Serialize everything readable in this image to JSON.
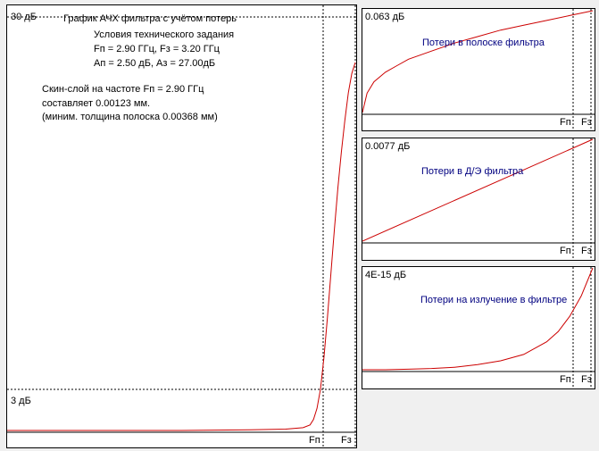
{
  "main_panel": {
    "max_label": "30 дБ",
    "title": "График АЧХ фильтра с учётом потерь",
    "conditions_title": "Условия технического задания",
    "conditions_line1": "Fп = 2.90 ГГц, Fз = 3.20 ГГц",
    "conditions_line2": "Ап = 2.50 дБ, Аз = 27.00дБ",
    "skin_line1": "Скин-слой на частоте Fп = 2.90  ГГц",
    "skin_line2": "составляет 0.00123 мм.",
    "skin_line3": "(миним. толщина полоска 0.00368 мм)",
    "ref_label": "3 дБ",
    "fp_label": "Fп",
    "fz_label": "Fз"
  },
  "sub_panels": [
    {
      "value_label": "0.063 дБ",
      "title": "Потери в полоске фильтра",
      "fp_label": "Fп",
      "fz_label": "Fз"
    },
    {
      "value_label": "0.0077 дБ",
      "title": "Потери в Д/Э фильтра",
      "fp_label": "Fп",
      "fz_label": "Fз"
    },
    {
      "value_label": "4E-15 дБ",
      "title": "Потери на излучение в фильтре",
      "fp_label": "Fп",
      "fz_label": "Fз"
    }
  ],
  "colors": {
    "curve": "#cc0000",
    "title_text": "#000080",
    "guide_lines": "#000000",
    "background": "#ffffff"
  },
  "chart_data": [
    {
      "type": "line",
      "title": "График АЧХ фильтра с учётом потерь",
      "x_markers": [
        "Fп",
        "Fз"
      ],
      "ylim": [
        0,
        30
      ],
      "y_reference": 3,
      "y_reference_label": "3 дБ",
      "y_max_label": "30 дБ",
      "series": [
        {
          "x": [
            0,
            0.5,
            0.7,
            0.8,
            0.85,
            0.87,
            0.88,
            0.89,
            0.9,
            0.91,
            0.92,
            0.93,
            0.94,
            0.95,
            0.96,
            0.97,
            0.98,
            0.99,
            1.0
          ],
          "values": [
            0,
            0,
            0.05,
            0.1,
            0.2,
            0.4,
            0.8,
            1.6,
            3.0,
            5.3,
            8.2,
            11.4,
            14.6,
            17.6,
            20.2,
            22.5,
            24.5,
            25.9,
            26.7
          ]
        }
      ]
    },
    {
      "type": "line",
      "title": "Потери в полоске фильтра",
      "x_markers": [
        "Fп",
        "Fз"
      ],
      "y_max_label": "0.063 дБ",
      "ylim": [
        0,
        0.063
      ],
      "series": [
        {
          "x": [
            0,
            0.02,
            0.05,
            0.1,
            0.15,
            0.2,
            0.3,
            0.4,
            0.5,
            0.6,
            0.7,
            0.8,
            0.9,
            1.0
          ],
          "values": [
            0,
            0.012,
            0.019,
            0.025,
            0.029,
            0.033,
            0.038,
            0.043,
            0.047,
            0.051,
            0.054,
            0.057,
            0.06,
            0.063
          ]
        }
      ]
    },
    {
      "type": "line",
      "title": "Потери в Д/Э фильтра",
      "x_markers": [
        "Fп",
        "Fз"
      ],
      "y_max_label": "0.0077 дБ",
      "ylim": [
        0,
        0.0077
      ],
      "series": [
        {
          "x": [
            0,
            1.0
          ],
          "values": [
            0,
            0.0077
          ]
        }
      ]
    },
    {
      "type": "line",
      "title": "Потери на излучение в фильтре",
      "x_markers": [
        "Fп",
        "Fз"
      ],
      "y_max_label": "4E-15 дБ",
      "ylim": [
        0,
        4e-15
      ],
      "series": [
        {
          "x": [
            0,
            0.1,
            0.2,
            0.3,
            0.4,
            0.5,
            0.6,
            0.7,
            0.8,
            0.85,
            0.9,
            0.95,
            1.0
          ],
          "values": [
            0,
            0,
            2e-17,
            5e-17,
            1e-16,
            2e-16,
            3.5e-16,
            6e-16,
            1.1e-15,
            1.5e-15,
            2.1e-15,
            2.9e-15,
            4e-15
          ]
        }
      ]
    }
  ]
}
